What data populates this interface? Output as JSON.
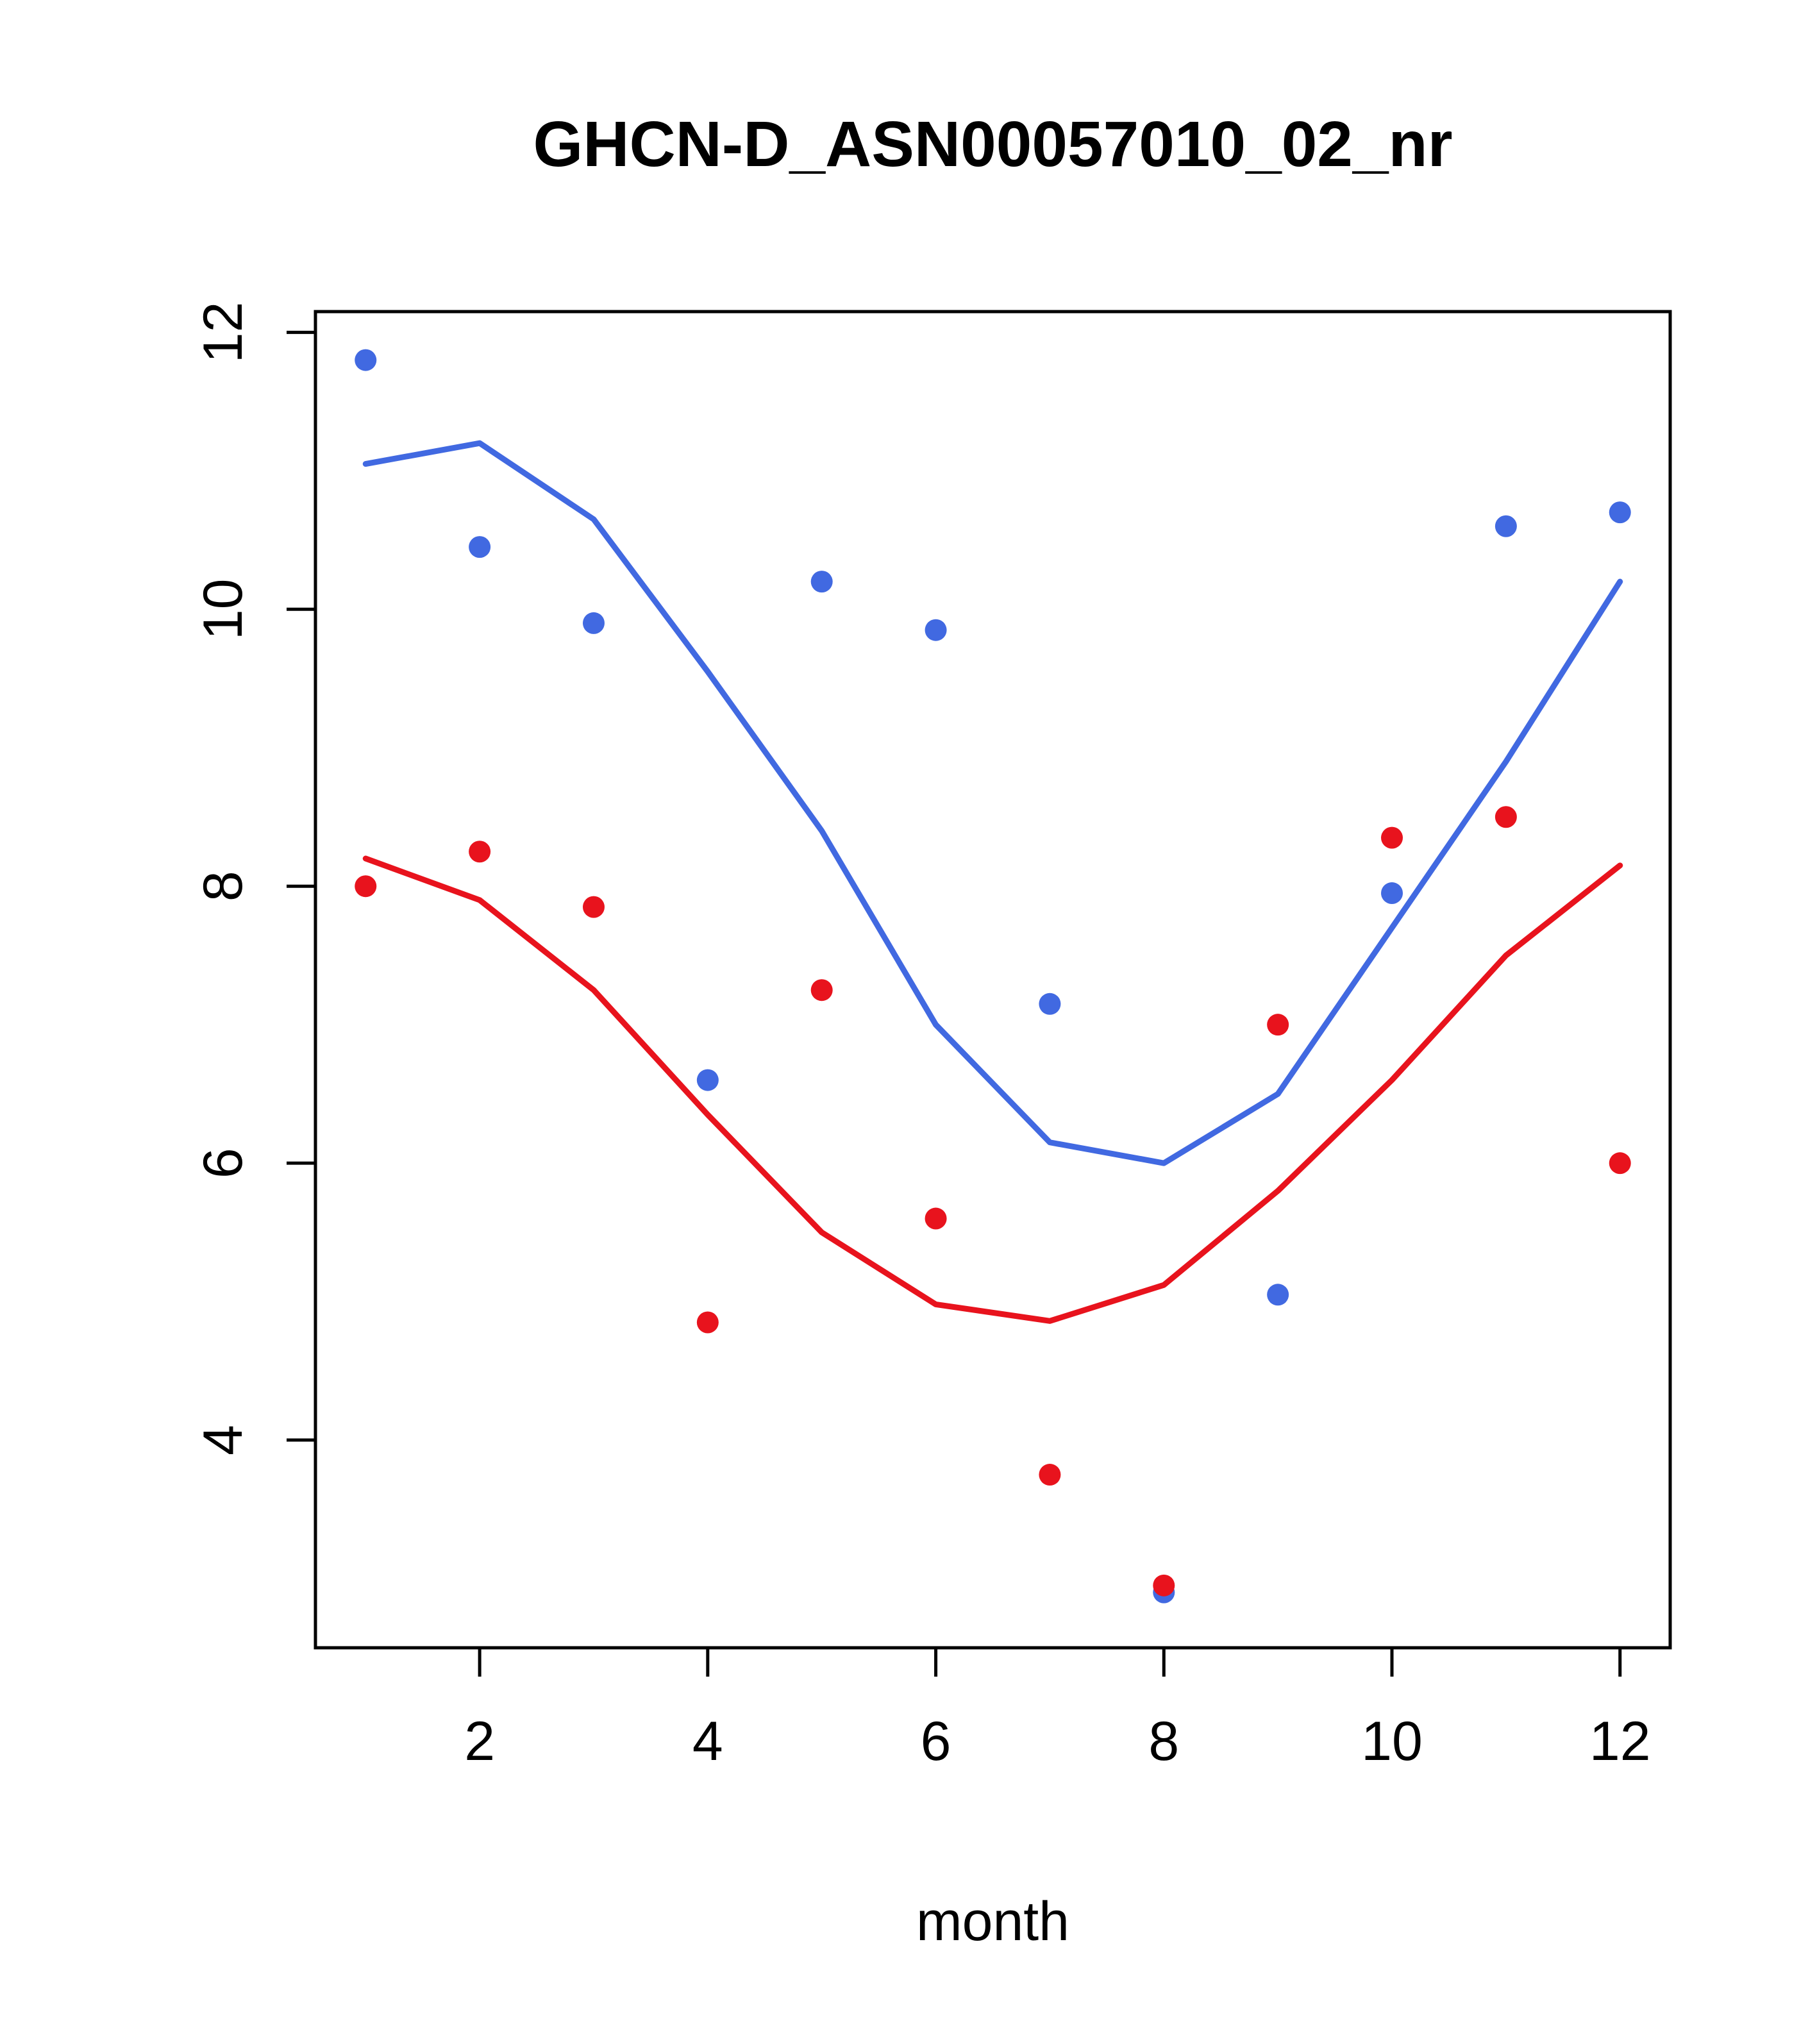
{
  "chart_data": {
    "type": "scatter",
    "title": "GHCN-D_ASN00057010_02_nr",
    "xlabel": "month",
    "ylabel": "",
    "xlim": [
      0.56,
      12.44
    ],
    "ylim": [
      2.5,
      12.15
    ],
    "xticks": [
      2,
      4,
      6,
      8,
      10,
      12
    ],
    "yticks": [
      4,
      6,
      8,
      10,
      12
    ],
    "grid": false,
    "legend": "none",
    "x": [
      1,
      2,
      3,
      4,
      5,
      6,
      7,
      8,
      9,
      10,
      11,
      12
    ],
    "series": [
      {
        "name": "blue-points",
        "type": "points",
        "color": "#4169e1",
        "values": [
          11.8,
          10.45,
          9.9,
          6.6,
          10.2,
          9.85,
          7.15,
          2.9,
          5.05,
          7.95,
          10.6,
          10.7
        ]
      },
      {
        "name": "red-points",
        "type": "points",
        "color": "#e8131d",
        "values": [
          8.0,
          8.25,
          7.85,
          4.85,
          7.25,
          5.6,
          3.75,
          2.95,
          7.0,
          8.35,
          8.5,
          6.0
        ]
      },
      {
        "name": "blue-trend-line",
        "type": "line",
        "color": "#4169e1",
        "values": [
          11.05,
          11.2,
          10.65,
          9.55,
          8.4,
          7.0,
          6.15,
          6.0,
          6.5,
          7.7,
          8.9,
          10.2
        ]
      },
      {
        "name": "red-trend-line",
        "type": "line",
        "color": "#e8131d",
        "values": [
          8.2,
          7.9,
          7.25,
          6.35,
          5.5,
          4.98,
          4.86,
          5.12,
          5.8,
          6.6,
          7.5,
          8.15
        ]
      }
    ]
  }
}
